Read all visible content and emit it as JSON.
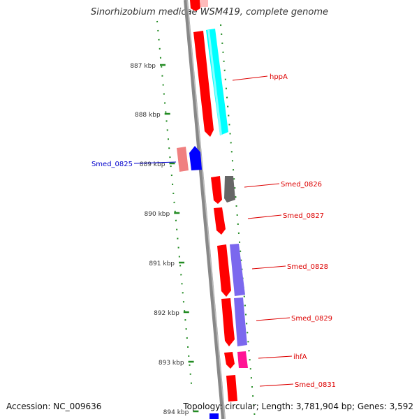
{
  "title": "Sinorhizobium medicae WSM419, complete genome",
  "footer": {
    "accession": "Accession: NC_009636",
    "summary": "Topology: circular; Length: 3,781,904 bp; Genes: 3,592"
  },
  "ticks": [
    {
      "label": "887 kbp"
    },
    {
      "label": "888 kbp"
    },
    {
      "label": "889 kbp"
    },
    {
      "label": "890 kbp"
    },
    {
      "label": "891 kbp"
    },
    {
      "label": "892 kbp"
    },
    {
      "label": "893 kbp"
    },
    {
      "label": "894 kbp"
    }
  ],
  "genes": [
    {
      "name": "hppA",
      "strand": "+",
      "gene_color": "#ff0000",
      "product_color": "#00ffff"
    },
    {
      "name": "Smed_0825",
      "strand": "-",
      "gene_color": "#0000ff",
      "product_color": "#f08080"
    },
    {
      "name": "Smed_0826",
      "strand": "+",
      "gene_color": "#ff0000",
      "product_color": "#666666"
    },
    {
      "name": "Smed_0827",
      "strand": "+",
      "gene_color": "#ff0000",
      "product_color": ""
    },
    {
      "name": "Smed_0828",
      "strand": "+",
      "gene_color": "#ff0000",
      "product_color": "#7b68ee"
    },
    {
      "name": "Smed_0829",
      "strand": "+",
      "gene_color": "#ff0000",
      "product_color": "#7b68ee"
    },
    {
      "name": "ihfA",
      "strand": "+",
      "gene_color": "#ff0000",
      "product_color": "#ff1493"
    },
    {
      "name": "Smed_0831",
      "strand": "+",
      "gene_color": "#ff0000",
      "product_color": ""
    }
  ],
  "colors": {
    "plus_strand_label": "#dd0000",
    "minus_strand_label": "#0000cc",
    "backbone": "#888888",
    "dotted_track": "#228b22"
  }
}
